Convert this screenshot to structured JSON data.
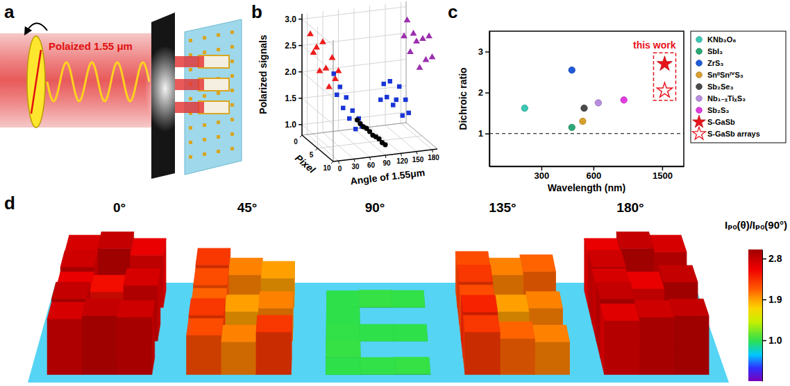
{
  "diagram": {
    "panel": "a",
    "beam_label": "Polaized 1.55 μm"
  },
  "chart_data": [
    {
      "panel": "b",
      "type": "scatter3d",
      "x_label": "Angle of 1.55μm",
      "y_label": "Pixel",
      "z_label": "Polarized signals",
      "xlim": [
        -10,
        190
      ],
      "xticks": [
        0,
        30,
        60,
        90,
        120,
        150,
        180
      ],
      "ylim": [
        0,
        10
      ],
      "yticks": [
        0,
        5,
        10
      ],
      "zlim": [
        0.8,
        3.1
      ],
      "zticks": [
        {
          "value": 1,
          "label": "1.0"
        },
        1.5,
        {
          "value": 2,
          "label": "2.0"
        },
        2.5,
        {
          "value": 3,
          "label": "3.0"
        }
      ],
      "grid": true,
      "series": [
        {
          "color": "#ee1c1c",
          "marker": "triangle",
          "x": [
            0,
            0,
            0,
            0,
            0,
            0,
            0,
            0,
            0,
            0
          ],
          "pixel": [
            1,
            2,
            3,
            4,
            5,
            6,
            7,
            8,
            9,
            10
          ],
          "values": [
            2.75,
            2.45,
            2.6,
            2.2,
            2.8,
            2.35,
            2.05,
            2.65,
            2.3,
            2.5
          ]
        },
        {
          "color": "#1a35d6",
          "marker": "square",
          "x": [
            45,
            45,
            45,
            45,
            45,
            45,
            45,
            45,
            45,
            45
          ],
          "pixel": [
            1,
            2,
            3,
            4,
            5,
            6,
            7,
            8,
            9,
            10
          ],
          "values": [
            1.95,
            1.6,
            1.8,
            1.45,
            1.7,
            1.35,
            1.55,
            1.25,
            1.5,
            1.4
          ]
        },
        {
          "color": "#000000",
          "marker": "circle",
          "x": [
            90,
            90,
            90,
            90,
            90,
            90,
            90,
            90,
            90,
            90
          ],
          "pixel": [
            1,
            2,
            3,
            4,
            5,
            6,
            7,
            8,
            9,
            10
          ],
          "values": [
            1.02,
            1.0,
            0.99,
            1.01,
            1.0,
            0.98,
            1.0,
            1.01,
            0.99,
            1.0
          ]
        },
        {
          "color": "#1a35d6",
          "marker": "square",
          "x": [
            135,
            135,
            135,
            135,
            135,
            135,
            135,
            135,
            135,
            135
          ],
          "pixel": [
            1,
            2,
            3,
            4,
            5,
            6,
            7,
            8,
            9,
            10
          ],
          "values": [
            1.35,
            1.7,
            1.5,
            1.85,
            1.45,
            1.6,
            1.9,
            1.4,
            1.75,
            1.55
          ]
        },
        {
          "color": "#9b2fae",
          "marker": "triangle",
          "x": [
            180,
            180,
            180,
            180,
            180,
            180,
            180,
            180,
            180,
            180
          ],
          "pixel": [
            1,
            2,
            3,
            4,
            5,
            6,
            7,
            8,
            9,
            10
          ],
          "values": [
            2.5,
            2.85,
            2.3,
            2.7,
            2.6,
            2.15,
            2.75,
            2.4,
            2.9,
            2.55
          ]
        }
      ]
    },
    {
      "panel": "c",
      "type": "scatter",
      "log": "x",
      "x_label": "Wavelength (nm)",
      "y_label": "Dichroic ratio",
      "xlim": [
        150,
        2000
      ],
      "xticks": [
        300,
        600,
        1500
      ],
      "ylim": [
        0.2,
        3.5
      ],
      "yticks": [
        1,
        2,
        3
      ],
      "hline": 1,
      "annotation": "this work",
      "legend": "right",
      "series": [
        {
          "name": "KNb₃O₈",
          "color": "#3cc8b4",
          "marker": "circle",
          "x": [
            240
          ],
          "values": [
            1.62
          ]
        },
        {
          "name": "SbI₃",
          "color": "#2aa876",
          "marker": "circle",
          "x": [
            450
          ],
          "values": [
            1.15
          ]
        },
        {
          "name": "ZrS₃",
          "color": "#1f5bd6",
          "marker": "circle",
          "x": [
            450
          ],
          "values": [
            2.55
          ]
        },
        {
          "name": "SnᴵᴵSnᴵⱽS₃",
          "color": "#d9a030",
          "marker": "circle",
          "x": [
            520
          ],
          "values": [
            1.3
          ]
        },
        {
          "name": "Sb₂Se₃",
          "color": "#4a4a4a",
          "marker": "circle",
          "x": [
            530
          ],
          "values": [
            1.62
          ]
        },
        {
          "name": "Nb₁₋ₓTiₓS₃",
          "color": "#b98de0",
          "marker": "circle",
          "x": [
            640
          ],
          "values": [
            1.75
          ]
        },
        {
          "name": "Sb₂S₃",
          "color": "#e03ce0",
          "marker": "circle",
          "x": [
            900
          ],
          "values": [
            1.82
          ]
        },
        {
          "name": "S-GaSb",
          "color": "#e8141c",
          "marker": "star",
          "x": [
            1550
          ],
          "values": [
            2.7
          ]
        },
        {
          "name": "S-GaSb arrays",
          "color": "#e8141c",
          "marker": "star-open",
          "x": [
            1550
          ],
          "values": [
            2.05
          ]
        }
      ]
    },
    {
      "panel": "d",
      "type": "heatmap3d",
      "categories": [
        "0°",
        "45°",
        "90°",
        "135°",
        "180°"
      ],
      "cells": [
        [
          [
            2.7,
            2.8,
            2.6
          ],
          [
            2.75,
            null,
            null
          ],
          [
            2.6,
            2.5,
            2.7
          ],
          [
            2.8,
            null,
            null
          ],
          [
            2.7,
            2.8,
            2.75
          ]
        ],
        [
          [
            2.3,
            2.0,
            1.9
          ],
          [
            2.2,
            null,
            null
          ],
          [
            2.1,
            1.9,
            2.0
          ],
          [
            2.3,
            null,
            null
          ],
          [
            2.2,
            2.0,
            2.3
          ]
        ],
        [
          [
            1.0,
            1.02,
            1.01
          ],
          [
            1.0,
            null,
            null
          ],
          [
            1.01,
            1.0,
            1.0
          ],
          [
            1.02,
            null,
            null
          ],
          [
            1.0,
            1.01,
            1.02
          ]
        ],
        [
          [
            2.2,
            2.0,
            2.1
          ],
          [
            2.3,
            null,
            null
          ],
          [
            2.2,
            1.9,
            2.0
          ],
          [
            2.4,
            null,
            null
          ],
          [
            2.3,
            2.1,
            2.0
          ]
        ],
        [
          [
            2.6,
            2.8,
            2.7
          ],
          [
            2.75,
            null,
            null
          ],
          [
            2.7,
            2.6,
            2.8
          ],
          [
            2.8,
            null,
            null
          ],
          [
            2.65,
            2.75,
            2.8
          ]
        ]
      ],
      "colorbar": {
        "title": "Iₚₒ(θ)/Iₚₒ(90°)",
        "range": [
          0.1,
          3.0
        ],
        "ticks": [
          {
            "value": 1,
            "label": "1.0"
          },
          1.9,
          2.8
        ]
      }
    }
  ]
}
